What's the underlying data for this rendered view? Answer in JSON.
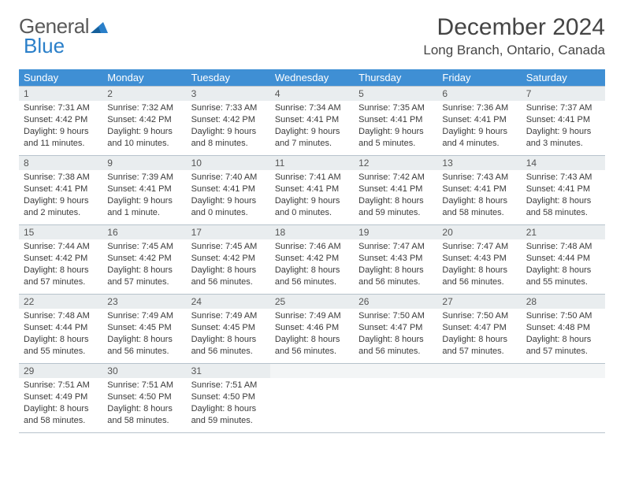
{
  "logo": {
    "word1": "General",
    "word2": "Blue"
  },
  "title": "December 2024",
  "location": "Long Branch, Ontario, Canada",
  "colors": {
    "header_bg": "#3f8fd4",
    "header_text": "#ffffff",
    "daynum_bg": "#e9edef",
    "border": "#b7c3cc",
    "text": "#3a3a3a",
    "logo_gray": "#5a5a5a",
    "logo_blue": "#2a7fc9"
  },
  "weekdays": [
    "Sunday",
    "Monday",
    "Tuesday",
    "Wednesday",
    "Thursday",
    "Friday",
    "Saturday"
  ],
  "weeks": [
    [
      {
        "n": "1",
        "sunrise": "7:31 AM",
        "sunset": "4:42 PM",
        "day": "9 hours and 11 minutes."
      },
      {
        "n": "2",
        "sunrise": "7:32 AM",
        "sunset": "4:42 PM",
        "day": "9 hours and 10 minutes."
      },
      {
        "n": "3",
        "sunrise": "7:33 AM",
        "sunset": "4:42 PM",
        "day": "9 hours and 8 minutes."
      },
      {
        "n": "4",
        "sunrise": "7:34 AM",
        "sunset": "4:41 PM",
        "day": "9 hours and 7 minutes."
      },
      {
        "n": "5",
        "sunrise": "7:35 AM",
        "sunset": "4:41 PM",
        "day": "9 hours and 5 minutes."
      },
      {
        "n": "6",
        "sunrise": "7:36 AM",
        "sunset": "4:41 PM",
        "day": "9 hours and 4 minutes."
      },
      {
        "n": "7",
        "sunrise": "7:37 AM",
        "sunset": "4:41 PM",
        "day": "9 hours and 3 minutes."
      }
    ],
    [
      {
        "n": "8",
        "sunrise": "7:38 AM",
        "sunset": "4:41 PM",
        "day": "9 hours and 2 minutes."
      },
      {
        "n": "9",
        "sunrise": "7:39 AM",
        "sunset": "4:41 PM",
        "day": "9 hours and 1 minute."
      },
      {
        "n": "10",
        "sunrise": "7:40 AM",
        "sunset": "4:41 PM",
        "day": "9 hours and 0 minutes."
      },
      {
        "n": "11",
        "sunrise": "7:41 AM",
        "sunset": "4:41 PM",
        "day": "9 hours and 0 minutes."
      },
      {
        "n": "12",
        "sunrise": "7:42 AM",
        "sunset": "4:41 PM",
        "day": "8 hours and 59 minutes."
      },
      {
        "n": "13",
        "sunrise": "7:43 AM",
        "sunset": "4:41 PM",
        "day": "8 hours and 58 minutes."
      },
      {
        "n": "14",
        "sunrise": "7:43 AM",
        "sunset": "4:41 PM",
        "day": "8 hours and 58 minutes."
      }
    ],
    [
      {
        "n": "15",
        "sunrise": "7:44 AM",
        "sunset": "4:42 PM",
        "day": "8 hours and 57 minutes."
      },
      {
        "n": "16",
        "sunrise": "7:45 AM",
        "sunset": "4:42 PM",
        "day": "8 hours and 57 minutes."
      },
      {
        "n": "17",
        "sunrise": "7:45 AM",
        "sunset": "4:42 PM",
        "day": "8 hours and 56 minutes."
      },
      {
        "n": "18",
        "sunrise": "7:46 AM",
        "sunset": "4:42 PM",
        "day": "8 hours and 56 minutes."
      },
      {
        "n": "19",
        "sunrise": "7:47 AM",
        "sunset": "4:43 PM",
        "day": "8 hours and 56 minutes."
      },
      {
        "n": "20",
        "sunrise": "7:47 AM",
        "sunset": "4:43 PM",
        "day": "8 hours and 56 minutes."
      },
      {
        "n": "21",
        "sunrise": "7:48 AM",
        "sunset": "4:44 PM",
        "day": "8 hours and 55 minutes."
      }
    ],
    [
      {
        "n": "22",
        "sunrise": "7:48 AM",
        "sunset": "4:44 PM",
        "day": "8 hours and 55 minutes."
      },
      {
        "n": "23",
        "sunrise": "7:49 AM",
        "sunset": "4:45 PM",
        "day": "8 hours and 56 minutes."
      },
      {
        "n": "24",
        "sunrise": "7:49 AM",
        "sunset": "4:45 PM",
        "day": "8 hours and 56 minutes."
      },
      {
        "n": "25",
        "sunrise": "7:49 AM",
        "sunset": "4:46 PM",
        "day": "8 hours and 56 minutes."
      },
      {
        "n": "26",
        "sunrise": "7:50 AM",
        "sunset": "4:47 PM",
        "day": "8 hours and 56 minutes."
      },
      {
        "n": "27",
        "sunrise": "7:50 AM",
        "sunset": "4:47 PM",
        "day": "8 hours and 57 minutes."
      },
      {
        "n": "28",
        "sunrise": "7:50 AM",
        "sunset": "4:48 PM",
        "day": "8 hours and 57 minutes."
      }
    ],
    [
      {
        "n": "29",
        "sunrise": "7:51 AM",
        "sunset": "4:49 PM",
        "day": "8 hours and 58 minutes."
      },
      {
        "n": "30",
        "sunrise": "7:51 AM",
        "sunset": "4:50 PM",
        "day": "8 hours and 58 minutes."
      },
      {
        "n": "31",
        "sunrise": "7:51 AM",
        "sunset": "4:50 PM",
        "day": "8 hours and 59 minutes."
      },
      {
        "empty": true
      },
      {
        "empty": true
      },
      {
        "empty": true
      },
      {
        "empty": true
      }
    ]
  ],
  "labels": {
    "sunrise": "Sunrise: ",
    "sunset": "Sunset: ",
    "daylight": "Daylight: "
  }
}
